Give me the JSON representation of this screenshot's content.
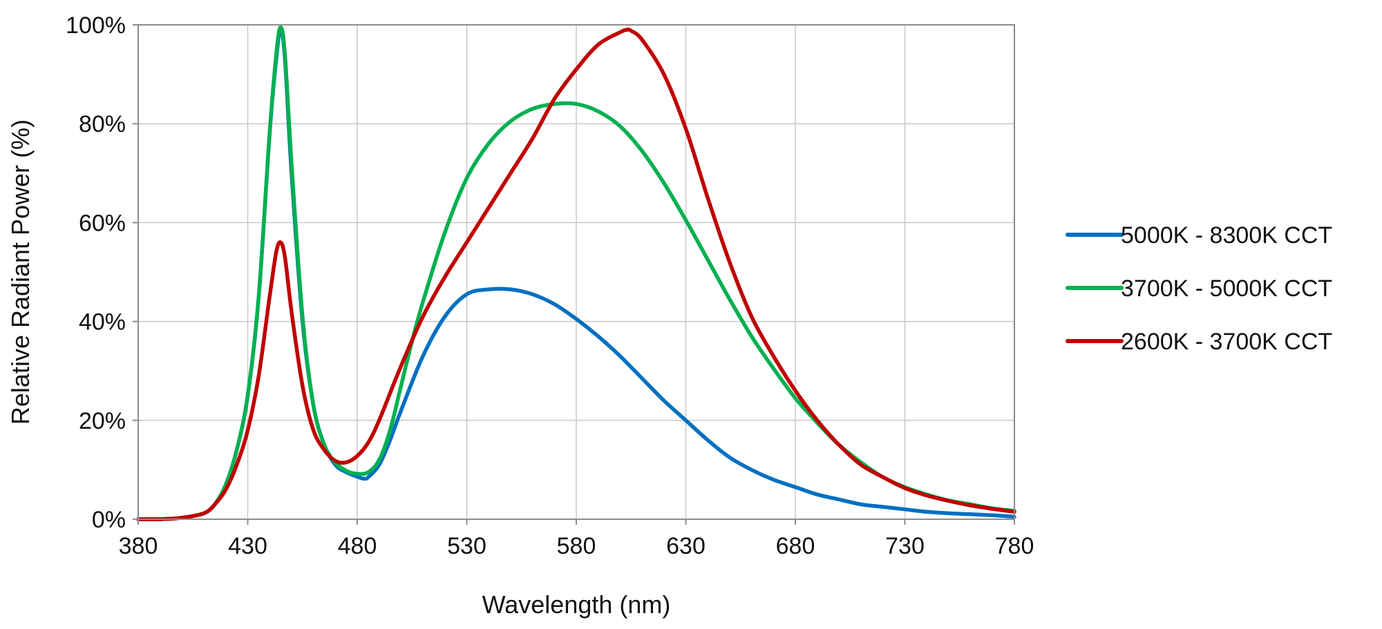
{
  "chart_data": {
    "type": "line",
    "title": "",
    "xlabel": "Wavelength (nm)",
    "ylabel": "Relative Radiant Power (%)",
    "xlim": [
      380,
      780
    ],
    "ylim": [
      0,
      100
    ],
    "xticks": [
      380,
      430,
      480,
      530,
      580,
      630,
      680,
      730,
      780
    ],
    "yticks": [
      0,
      20,
      40,
      60,
      80,
      100
    ],
    "xtick_labels": [
      "380",
      "430",
      "480",
      "530",
      "580",
      "630",
      "680",
      "730",
      "780"
    ],
    "ytick_labels": [
      "0%",
      "20%",
      "40%",
      "60%",
      "80%",
      "100%"
    ],
    "grid": true,
    "legend_position": "right",
    "series": [
      {
        "name": "5000K - 8300K CCT",
        "color": "#0070c0",
        "x": [
          380,
          390,
          400,
          410,
          415,
          420,
          425,
          430,
          435,
          440,
          443,
          445,
          447,
          450,
          455,
          460,
          465,
          470,
          475,
          480,
          483,
          485,
          490,
          495,
          500,
          510,
          520,
          530,
          540,
          550,
          560,
          570,
          580,
          590,
          600,
          610,
          620,
          630,
          640,
          650,
          660,
          670,
          680,
          690,
          700,
          710,
          720,
          730,
          740,
          750,
          760,
          770,
          780
        ],
        "y": [
          0,
          0,
          0.3,
          1.2,
          3,
          7,
          14,
          25,
          45,
          78,
          93,
          99,
          93,
          70,
          40,
          23,
          15,
          11,
          9.5,
          8.6,
          8.2,
          8.5,
          11,
          16,
          22,
          33,
          41,
          45.5,
          46.5,
          46.5,
          45.5,
          43.5,
          40.5,
          37,
          33,
          28.5,
          24,
          20,
          16,
          12.5,
          10,
          8,
          6.5,
          5,
          4,
          3,
          2.5,
          2,
          1.5,
          1.2,
          1,
          0.8,
          0.5
        ]
      },
      {
        "name": "3700K - 5000K CCT",
        "color": "#00b050",
        "x": [
          380,
          390,
          400,
          410,
          415,
          420,
          425,
          430,
          435,
          440,
          443,
          445,
          447,
          450,
          455,
          460,
          465,
          470,
          475,
          480,
          485,
          490,
          495,
          500,
          505,
          510,
          520,
          530,
          540,
          550,
          560,
          570,
          580,
          590,
          600,
          610,
          620,
          630,
          640,
          650,
          660,
          670,
          680,
          690,
          700,
          710,
          720,
          730,
          740,
          750,
          760,
          770,
          780
        ],
        "y": [
          0,
          0,
          0.3,
          1.2,
          3,
          7,
          14,
          25,
          45,
          78,
          94,
          99.5,
          94,
          72,
          41,
          23,
          15,
          11.5,
          9.8,
          9.2,
          9.5,
          12,
          18,
          27,
          36,
          44,
          58,
          69,
          76,
          80.5,
          83,
          84,
          84,
          82.5,
          79.5,
          74.5,
          68,
          60.5,
          52.5,
          44.5,
          37,
          30.5,
          24.5,
          19.5,
          15,
          11.5,
          8.5,
          6.5,
          5,
          3.8,
          3,
          2.2,
          1.7
        ]
      },
      {
        "name": "2600K - 3700K CCT",
        "color": "#c00000",
        "x": [
          380,
          390,
          400,
          410,
          415,
          420,
          425,
          430,
          435,
          440,
          443,
          445,
          447,
          450,
          455,
          460,
          465,
          470,
          475,
          480,
          485,
          490,
          500,
          510,
          520,
          530,
          540,
          550,
          560,
          570,
          580,
          590,
          600,
          603,
          605,
          610,
          620,
          630,
          640,
          650,
          660,
          670,
          680,
          690,
          700,
          710,
          720,
          730,
          740,
          750,
          760,
          770,
          780
        ],
        "y": [
          0,
          0,
          0.3,
          1.2,
          3,
          6,
          11,
          18,
          29,
          45,
          54,
          56,
          53,
          42,
          27,
          18,
          14,
          11.8,
          11.5,
          12.8,
          15.5,
          20,
          31,
          41,
          49,
          56,
          63,
          70,
          77,
          85,
          91,
          96,
          98.5,
          99,
          98.8,
          97,
          90,
          79,
          65,
          52,
          41,
          33,
          26,
          20,
          15,
          11,
          8.5,
          6.3,
          4.8,
          3.7,
          2.8,
          2.1,
          1.5
        ]
      }
    ]
  }
}
